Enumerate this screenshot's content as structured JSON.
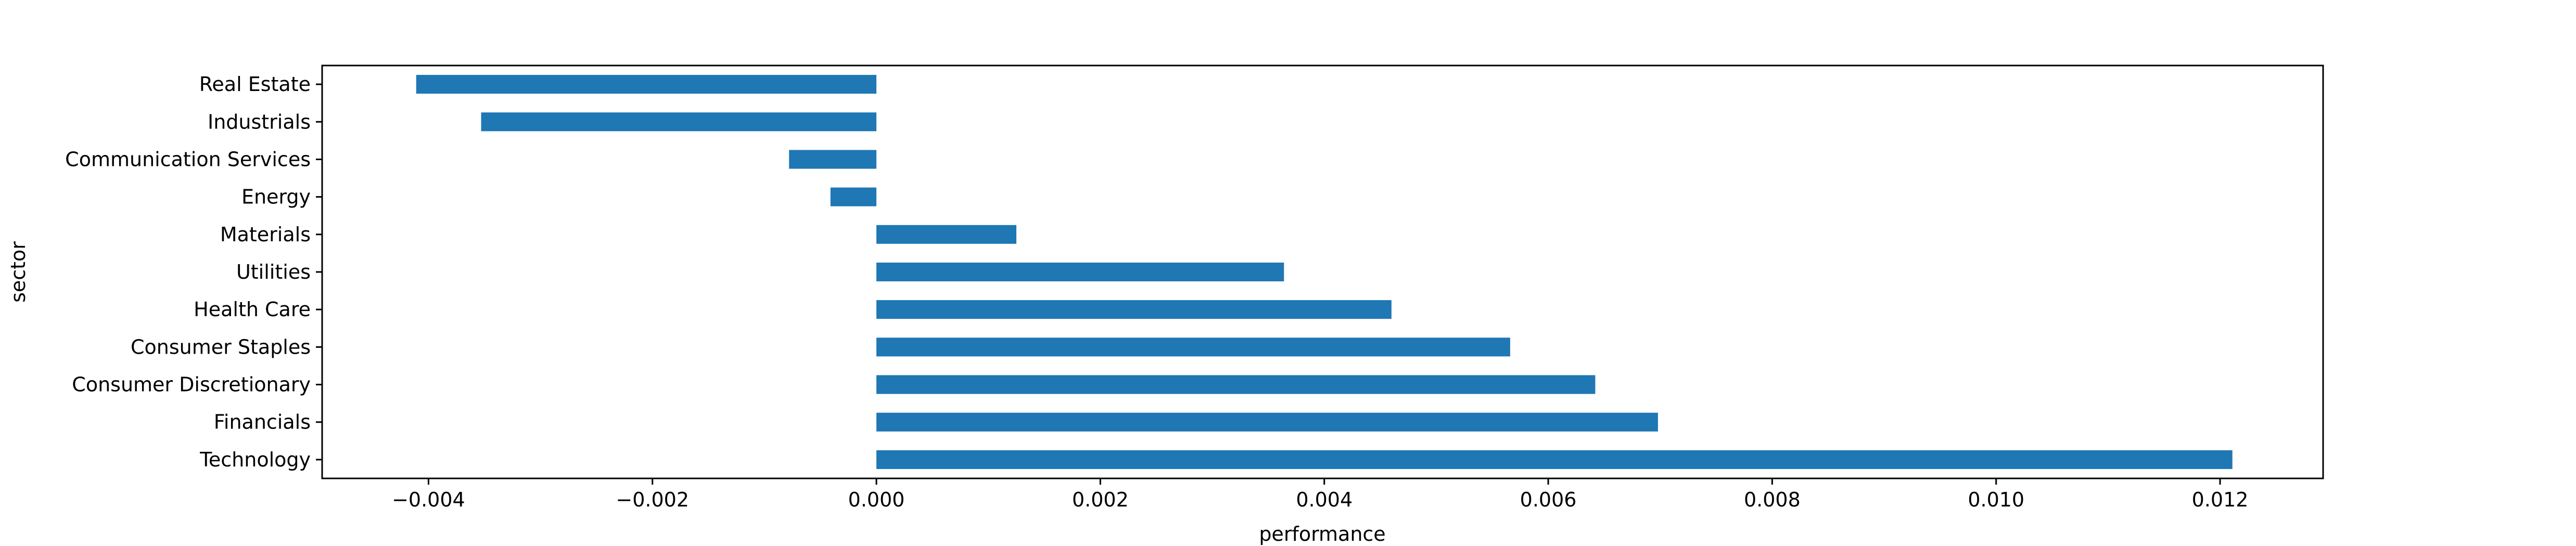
{
  "chart_data": {
    "type": "bar",
    "orientation": "horizontal",
    "xlabel": "performance",
    "ylabel": "sector",
    "xlim": [
      -0.00495,
      0.01292
    ],
    "xticks": [
      -0.004,
      -0.002,
      0.0,
      0.002,
      0.004,
      0.006,
      0.008,
      0.01,
      0.012
    ],
    "xtick_labels": [
      "−0.004",
      "−0.002",
      "0.000",
      "0.002",
      "0.004",
      "0.006",
      "0.008",
      "0.010",
      "0.012"
    ],
    "categories": [
      "Real Estate",
      "Industrials",
      "Communication Services",
      "Energy",
      "Materials",
      "Utilities",
      "Health Care",
      "Consumer Staples",
      "Consumer Discretionary",
      "Financials",
      "Technology"
    ],
    "values": [
      -0.00411,
      -0.00353,
      -0.00078,
      -0.00041,
      0.00125,
      0.00364,
      0.0046,
      0.00566,
      0.00642,
      0.00698,
      0.01211
    ],
    "bar_color": "#1f77b4",
    "grid": false,
    "legend": "none"
  }
}
